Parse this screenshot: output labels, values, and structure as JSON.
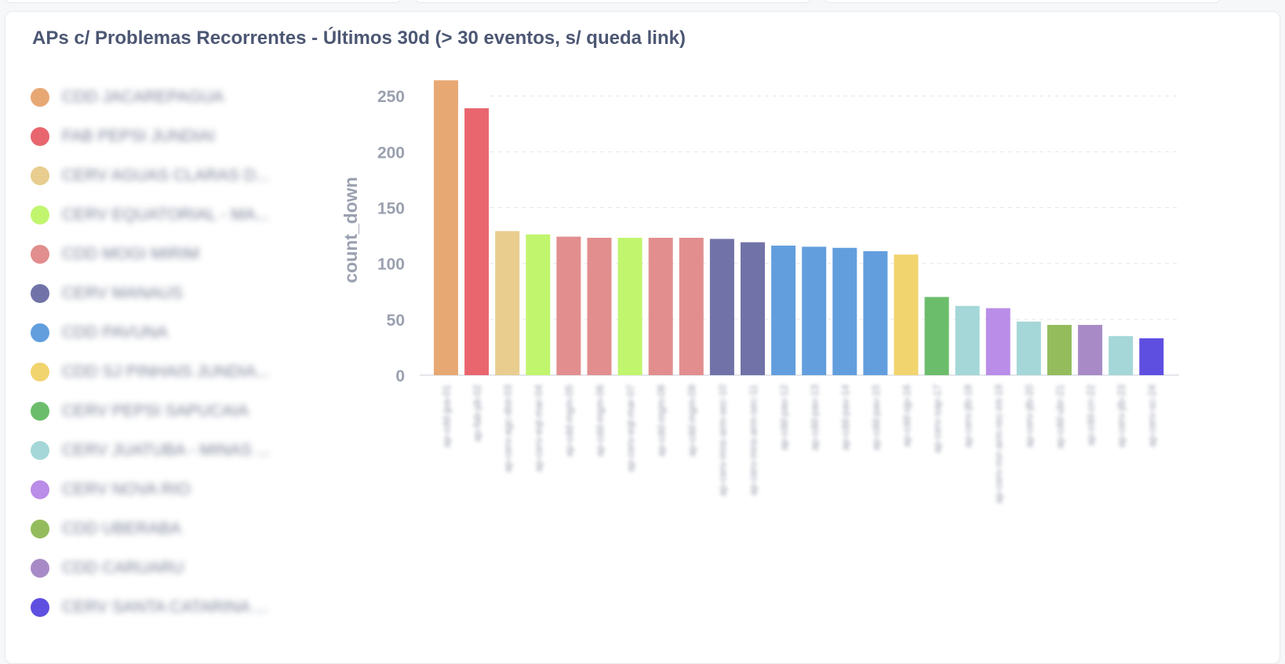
{
  "card": {
    "title": "APs c/ Problemas Recorrentes - Últimos 30d (> 30 eventos, s/ queda link)"
  },
  "legend": [
    {
      "label": "CDD JACAREPAGUA",
      "color": "#e8a874"
    },
    {
      "label": "FAB PEPSI JUNDIAI",
      "color": "#e9666f"
    },
    {
      "label": "CERV AGUAS CLARAS D...",
      "color": "#e8cd8f"
    },
    {
      "label": "CERV EQUATORIAL - MA...",
      "color": "#c1f56e"
    },
    {
      "label": "CDD MOGI MIRIM",
      "color": "#e28e8e"
    },
    {
      "label": "CERV MANAUS",
      "color": "#7173a8"
    },
    {
      "label": "CDD PAVUNA",
      "color": "#629ede"
    },
    {
      "label": "CDD SJ PINHAIS JUNDIA...",
      "color": "#f2d46e"
    },
    {
      "label": "CERV PEPSI SAPUCAIA",
      "color": "#6cbd6b"
    },
    {
      "label": "CERV JUATUBA - MINAS ...",
      "color": "#a5d7d8"
    },
    {
      "label": "CERV NOVA RIO",
      "color": "#b98de8"
    },
    {
      "label": "CDD UBERABA",
      "color": "#94bc5c"
    },
    {
      "label": "CDD CARUARU",
      "color": "#a88bc6"
    },
    {
      "label": "CERV SANTA CATARINA ...",
      "color": "#5f4fe0"
    }
  ],
  "chart_data": {
    "type": "bar",
    "title": "APs c/ Problemas Recorrentes - Últimos 30d (> 30 eventos, s/ queda link)",
    "xlabel": "",
    "ylabel": "count_down",
    "ylim": [
      0,
      260
    ],
    "yticks": [
      0,
      50,
      100,
      150,
      200,
      250
    ],
    "grid": true,
    "legend_position": "left",
    "categories": [
      "ap-cdd-jpa-01",
      "ap-fab-jdi-02",
      "ap-cerv-agc-dist-03",
      "ap-cerv-eqt-mar-04",
      "ap-cdd-mgm-05",
      "ap-cdd-mgm-06",
      "ap-cerv-eqt-mar-07",
      "ap-cdd-mgm-08",
      "ap-cdd-mgm-09",
      "ap-cerv-mns-arm-sec-10",
      "ap-cerv-mns-arm-sec-11",
      "ap-cdd-pav-12",
      "ap-cdd-pav-13",
      "ap-cdd-pav-14",
      "ap-cdd-pav-15",
      "ap-cdd-sjp-16",
      "ap-cerv-sap-17",
      "ap-cerv-jtb-18",
      "ap-cerv-nvr-arm-rec-int-19",
      "ap-cerv-jtb-20",
      "ap-cdd-ubr-21",
      "ap-cdd-crr-22",
      "ap-cerv-jtb-23",
      "ap-cerv-sc-24"
    ],
    "values": [
      264,
      239,
      129,
      126,
      124,
      123,
      123,
      123,
      123,
      122,
      119,
      116,
      115,
      114,
      111,
      108,
      70,
      62,
      60,
      48,
      45,
      45,
      35,
      33
    ],
    "colors": [
      "#e8a874",
      "#e9666f",
      "#e8cd8f",
      "#c1f56e",
      "#e28e8e",
      "#e28e8e",
      "#c1f56e",
      "#e28e8e",
      "#e28e8e",
      "#7173a8",
      "#7173a8",
      "#629ede",
      "#629ede",
      "#629ede",
      "#629ede",
      "#f2d46e",
      "#6cbd6b",
      "#a5d7d8",
      "#b98de8",
      "#a5d7d8",
      "#94bc5c",
      "#a88bc6",
      "#a5d7d8",
      "#5f4fe0"
    ]
  }
}
